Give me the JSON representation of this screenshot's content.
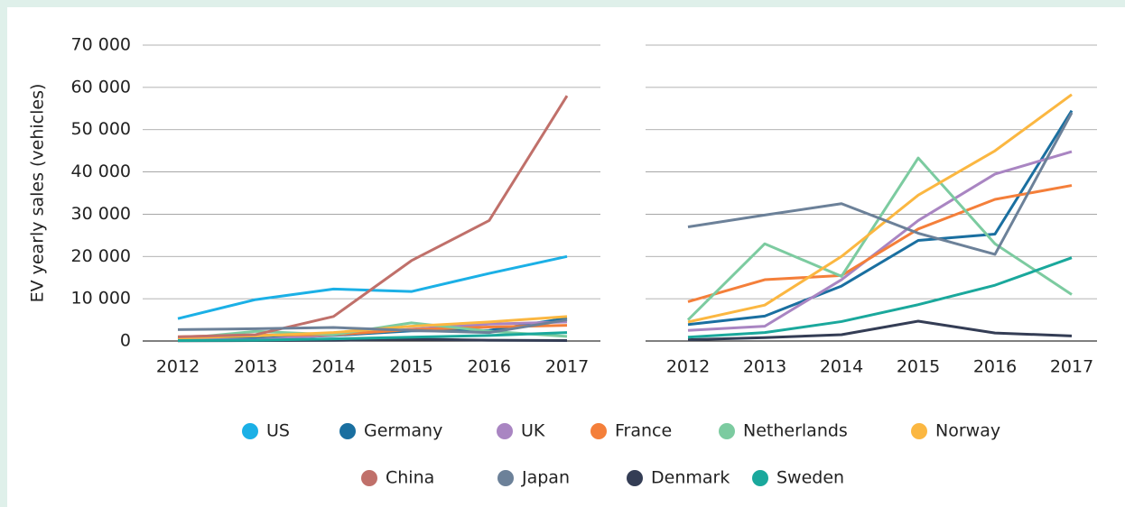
{
  "chart_data": [
    {
      "type": "line",
      "ylabel": "EV yearly sales (vehicles)",
      "categories": [
        "2012",
        "2013",
        "2014",
        "2015",
        "2016",
        "2017"
      ],
      "ylim": [
        0,
        70000
      ],
      "yticks": [
        {
          "value": 0,
          "label": "0"
        },
        {
          "value": 10000,
          "label": "10 000"
        },
        {
          "value": 20000,
          "label": "20 000"
        },
        {
          "value": 30000,
          "label": "30 000"
        },
        {
          "value": 40000,
          "label": "40 000"
        },
        {
          "value": 50000,
          "label": "50 000"
        },
        {
          "value": 60000,
          "label": "60 000"
        },
        {
          "value": 70000,
          "label": "70 000"
        }
      ],
      "grid": true,
      "series": [
        {
          "name": "US",
          "color": "#1bb0e6",
          "values": [
            5300,
            9800,
            12300,
            11700,
            16000,
            20000
          ]
        },
        {
          "name": "Germany",
          "color": "#1a6fa0",
          "values": [
            300,
            600,
            1300,
            2400,
            2500,
            5400
          ]
        },
        {
          "name": "UK",
          "color": "#a985c2",
          "values": [
            300,
            300,
            1400,
            2800,
            4000,
            4500
          ]
        },
        {
          "name": "France",
          "color": "#f47f3a",
          "values": [
            1000,
            1400,
            1500,
            2700,
            3300,
            3700
          ]
        },
        {
          "name": "Netherlands",
          "color": "#7ccba0",
          "values": [
            500,
            2300,
            1500,
            4300,
            2300,
            1100
          ]
        },
        {
          "name": "Norway",
          "color": "#fbb741",
          "values": [
            700,
            1200,
            2000,
            3500,
            4500,
            5800
          ]
        },
        {
          "name": "China",
          "color": "#c0706a",
          "values": [
            1000,
            1500,
            5800,
            19000,
            28500,
            58000
          ]
        },
        {
          "name": "Japan",
          "color": "#6c8199",
          "values": [
            2700,
            2900,
            3200,
            2500,
            2000,
            5000
          ]
        },
        {
          "name": "Denmark",
          "color": "#343d55",
          "values": [
            50,
            100,
            150,
            450,
            200,
            100
          ]
        },
        {
          "name": "Sweden",
          "color": "#1aa89c",
          "values": [
            100,
            200,
            500,
            900,
            1300,
            2000
          ]
        }
      ]
    },
    {
      "type": "line",
      "categories": [
        "2012",
        "2013",
        "2014",
        "2015",
        "2016",
        "2017"
      ],
      "ylim": [
        0,
        70000
      ],
      "yticks": [
        0,
        10000,
        20000,
        30000,
        40000,
        50000,
        60000,
        70000
      ],
      "grid": true,
      "series": [
        {
          "name": "Germany",
          "color": "#1a6fa0",
          "values": [
            3900,
            5900,
            13000,
            23800,
            25300,
            54500
          ]
        },
        {
          "name": "UK",
          "color": "#a985c2",
          "values": [
            2500,
            3500,
            14500,
            28500,
            39500,
            44800
          ]
        },
        {
          "name": "France",
          "color": "#f47f3a",
          "values": [
            9300,
            14500,
            15500,
            26500,
            33500,
            36800
          ]
        },
        {
          "name": "Netherlands",
          "color": "#7ccba0",
          "values": [
            5000,
            23000,
            15300,
            43300,
            23000,
            11000
          ]
        },
        {
          "name": "Norway",
          "color": "#fbb741",
          "values": [
            4500,
            8500,
            20000,
            34500,
            45000,
            58300
          ]
        },
        {
          "name": "Japan",
          "color": "#6c8199",
          "values": [
            27000,
            29800,
            32500,
            25500,
            20500,
            54000
          ]
        },
        {
          "name": "Denmark",
          "color": "#343d55",
          "values": [
            300,
            800,
            1500,
            4700,
            1900,
            1200
          ]
        },
        {
          "name": "Sweden",
          "color": "#1aa89c",
          "values": [
            900,
            2000,
            4600,
            8600,
            13200,
            19700
          ]
        }
      ]
    }
  ]
}
